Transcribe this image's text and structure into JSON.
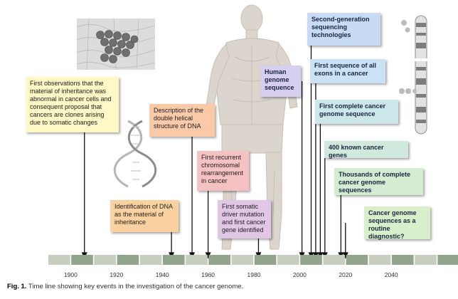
{
  "caption": {
    "label": "Fig. 1.",
    "text": "Time line showing key events in the investigation of the cancer genome."
  },
  "axis": {
    "ticks": [
      "1900",
      "1920",
      "1940",
      "1960",
      "1980",
      "2000",
      "2020",
      "2040"
    ]
  },
  "colors": {
    "timeline_band_dark": "#93a48c",
    "timeline_band_light": "#c6cfbf"
  },
  "events": [
    {
      "id": "inheritance-abnormal",
      "year": 1906,
      "color": "#fef7c6",
      "text": "First observations that the material of inheritance was abnormal in cancer cells and consequent proposal that cancers are clones arising due to somatic changes"
    },
    {
      "id": "dna-identification",
      "year": 1944,
      "color": "#fbd1a0",
      "text": "Identification of DNA as the material of inheritance"
    },
    {
      "id": "double-helix",
      "year": 1953,
      "color": "#f9c9a8",
      "text": "Description of the double helical structure of DNA"
    },
    {
      "id": "chromosomal-rearrangement",
      "year": 1960,
      "color": "#f5c1c3",
      "text": "First recurrent chromosomal rearrangement in cancer"
    },
    {
      "id": "somatic-driver",
      "year": 1982,
      "color": "#e2c6e6",
      "text": "First somatic driver mutation and first cancer gene identified"
    },
    {
      "id": "human-genome",
      "year": 2001,
      "color": "#d6cff0",
      "text": "Human genome sequence"
    },
    {
      "id": "second-gen-seq",
      "year": 2005,
      "color": "#c7dcf4",
      "text": "Second-generation sequencing technologies"
    },
    {
      "id": "all-exons",
      "year": 2007,
      "color": "#c9e2f4",
      "text": "First sequence of all exons in a cancer"
    },
    {
      "id": "complete-genome",
      "year": 2009,
      "color": "#cbe7ea",
      "text": "First complete cancer genome sequence"
    },
    {
      "id": "known-genes",
      "year": 2011,
      "color": "#cfe9dc",
      "text": "400 known cancer genes"
    },
    {
      "id": "thousands-genomes",
      "year": 2018,
      "color": "#d4ecd2",
      "text": "Thousands of complete cancer genome sequences"
    },
    {
      "id": "routine-diagnostic",
      "year": 2020,
      "color": "#d9eeca",
      "text": "Cancer genome sequences as a routine diagnostic?"
    }
  ]
}
